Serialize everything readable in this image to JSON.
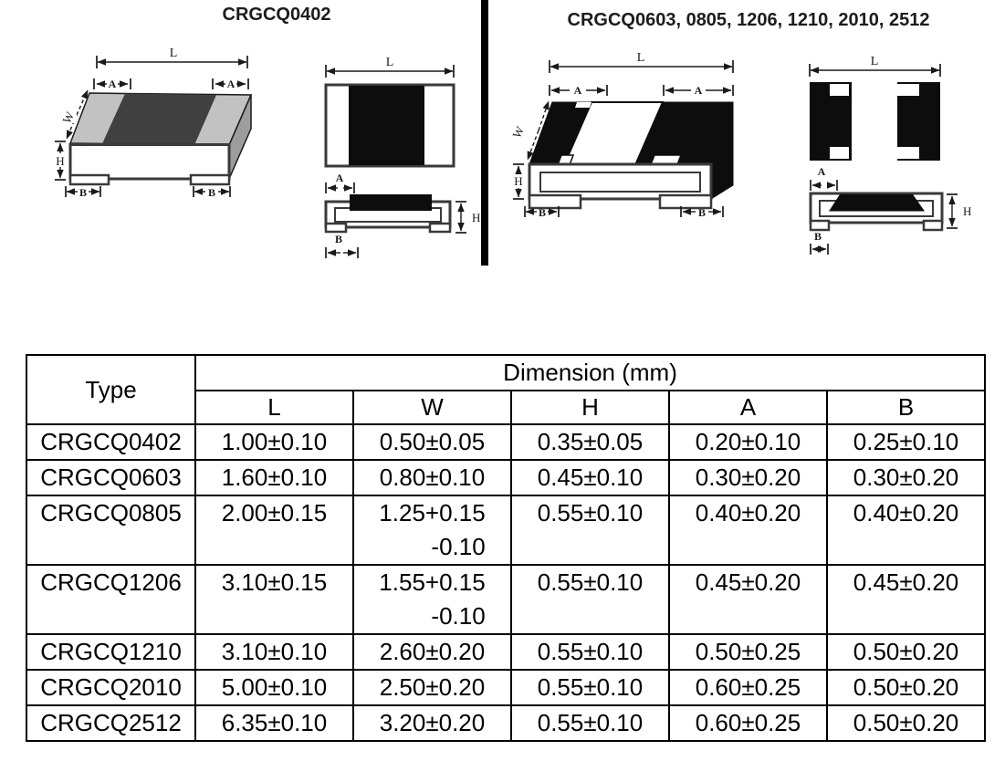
{
  "panels": {
    "left": {
      "title": "CRGCQ0402"
    },
    "right": {
      "title": "CRGCQ0603, 0805, 1206, 1210, 2010, 2512"
    }
  },
  "dim_labels": {
    "L": "L",
    "W": "W",
    "H": "H",
    "A": "A",
    "B": "B"
  },
  "colors": {
    "line": "#1a1a1a",
    "chip_dark_band": "#404040",
    "chip_light_face": "#c2c2c2",
    "chip_side_face": "#9d9d9d",
    "black_fill": "#0d0d0d",
    "table_border": "#000000"
  },
  "table": {
    "type_header": "Type",
    "group_header": "Dimension (mm)",
    "columns": [
      "L",
      "W",
      "H",
      "A",
      "B"
    ],
    "rows": [
      {
        "type": "CRGCQ0402",
        "values": [
          "1.00±0.10",
          "0.50±0.05",
          "0.35±0.05",
          "0.20±0.10",
          "0.25±0.10"
        ]
      },
      {
        "type": "CRGCQ0603",
        "values": [
          "1.60±0.10",
          "0.80±0.10",
          "0.45±0.10",
          "0.30±0.20",
          "0.30±0.20"
        ]
      },
      {
        "type": "CRGCQ0805",
        "values": [
          "2.00±0.15",
          [
            "1.25+0.15",
            "-0.10"
          ],
          "0.55±0.10",
          "0.40±0.20",
          "0.40±0.20"
        ]
      },
      {
        "type": "CRGCQ1206",
        "values": [
          "3.10±0.15",
          [
            "1.55+0.15",
            "-0.10"
          ],
          "0.55±0.10",
          "0.45±0.20",
          "0.45±0.20"
        ]
      },
      {
        "type": "CRGCQ1210",
        "values": [
          "3.10±0.10",
          "2.60±0.20",
          "0.55±0.10",
          "0.50±0.25",
          "0.50±0.20"
        ]
      },
      {
        "type": "CRGCQ2010",
        "values": [
          "5.00±0.10",
          "2.50±0.20",
          "0.55±0.10",
          "0.60±0.25",
          "0.50±0.20"
        ]
      },
      {
        "type": "CRGCQ2512",
        "values": [
          "6.35±0.10",
          "3.20±0.20",
          "0.55±0.10",
          "0.60±0.25",
          "0.50±0.20"
        ]
      }
    ]
  }
}
